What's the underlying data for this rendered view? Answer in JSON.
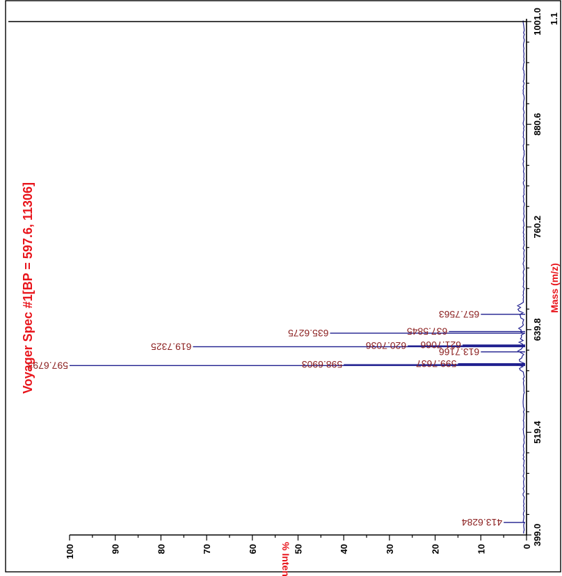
{
  "chart_data": {
    "type": "line",
    "title": "Voyager Spec #1[BP = 597.6, 11306]",
    "xlabel": "Mass (m/z)",
    "ylabel": "% Intensity",
    "xlim": [
      399.0,
      1001.0
    ],
    "ylim": [
      0,
      100
    ],
    "x_ticks": [
      "399.0",
      "519.4",
      "639.8",
      "760.2",
      "880.6",
      "1001.0"
    ],
    "y_ticks": [
      "0",
      "10",
      "20",
      "30",
      "40",
      "50",
      "60",
      "70",
      "80",
      "90",
      "100"
    ],
    "top_right_value": "1.1",
    "peaks": [
      {
        "mz": 597.6793,
        "label": "597.6793",
        "intensity": 100
      },
      {
        "mz": 619.7325,
        "label": "619.7325",
        "intensity": 73
      },
      {
        "mz": 635.6275,
        "label": "635.6275",
        "intensity": 43
      },
      {
        "mz": 598.6903,
        "label": "598.6903",
        "intensity": 40
      },
      {
        "mz": 620.7036,
        "label": "620.7036",
        "intensity": 26
      },
      {
        "mz": 637.5845,
        "label": "637.5845",
        "intensity": 17
      },
      {
        "mz": 599.7637,
        "label": "599.7637",
        "intensity": 15
      },
      {
        "mz": 621.7066,
        "label": "621.7066",
        "intensity": 14
      },
      {
        "mz": 657.7563,
        "label": "657.7563",
        "intensity": 10
      },
      {
        "mz": 613.7166,
        "label": "613.7166",
        "intensity": 10
      },
      {
        "mz": 413.6284,
        "label": "413.6284",
        "intensity": 5
      }
    ]
  }
}
